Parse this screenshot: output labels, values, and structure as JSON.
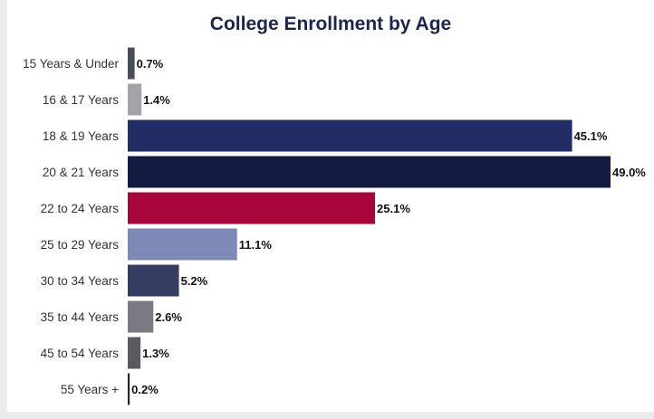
{
  "chart_data": {
    "type": "bar",
    "orientation": "horizontal",
    "title": "College Enrollment by Age",
    "xlabel": "",
    "ylabel": "",
    "xlim": [
      0,
      49.0
    ],
    "grid": false,
    "legend": "none",
    "categories": [
      "15 Years & Under",
      "16 & 17 Years",
      "18 & 19 Years",
      "20 & 21 Years",
      "22 to 24 Years",
      "25 to 29 Years",
      "30 to 34 Years",
      "35 to 44 Years",
      "45 to 54 Years",
      "55 Years +"
    ],
    "values": [
      0.7,
      1.4,
      45.1,
      49.0,
      25.1,
      11.1,
      5.2,
      2.6,
      1.3,
      0.2
    ],
    "value_labels": [
      "0.7%",
      "1.4%",
      "45.1%",
      "49.0%",
      "25.1%",
      "11.1%",
      "5.2%",
      "2.6%",
      "1.3%",
      "0.2%"
    ],
    "colors": [
      "#4a4d5c",
      "#a3a4aa",
      "#222d66",
      "#141b42",
      "#a8063a",
      "#7e89b8",
      "#353d63",
      "#7a7b82",
      "#5a5b62",
      "#26272d"
    ]
  }
}
